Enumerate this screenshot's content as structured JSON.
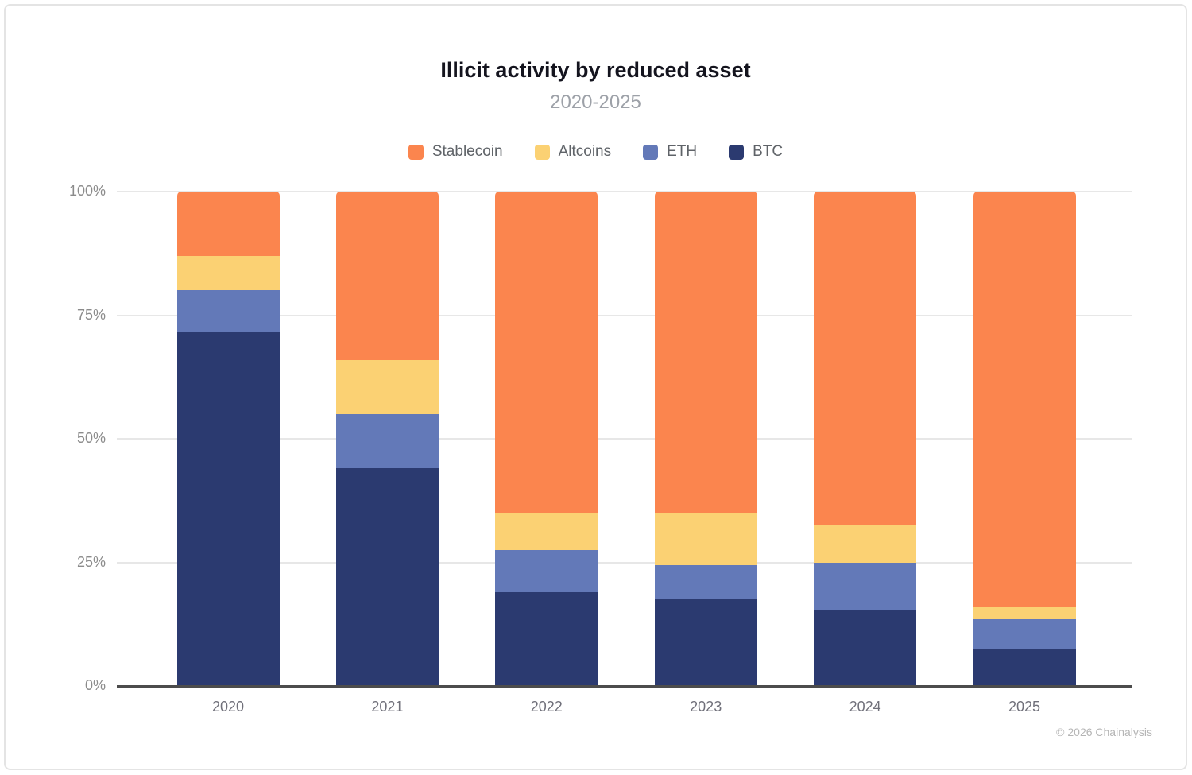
{
  "header": {
    "title": "Illicit activity by reduced asset",
    "subtitle": "2020-2025"
  },
  "legend": {
    "items": [
      {
        "label": "Stablecoin",
        "color": "#FB854E"
      },
      {
        "label": "Altcoins",
        "color": "#FBD173"
      },
      {
        "label": "ETH",
        "color": "#6379B8"
      },
      {
        "label": "BTC",
        "color": "#2B3A70"
      }
    ]
  },
  "chart_data": {
    "type": "bar",
    "stacked": true,
    "title": "Illicit activity by reduced asset",
    "subtitle": "2020-2025",
    "categories": [
      "2020",
      "2021",
      "2022",
      "2023",
      "2024",
      "2025"
    ],
    "series": [
      {
        "name": "BTC",
        "color": "#2B3A70",
        "values": [
          71.5,
          44,
          19,
          17.5,
          15.5,
          7.5
        ]
      },
      {
        "name": "ETH",
        "color": "#6379B8",
        "values": [
          8.5,
          11,
          8.5,
          7,
          9.5,
          6
        ]
      },
      {
        "name": "Altcoins",
        "color": "#FBD173",
        "values": [
          7,
          11,
          7.5,
          10.5,
          7.5,
          2.5
        ]
      },
      {
        "name": "Stablecoin",
        "color": "#FB854E",
        "values": [
          13,
          34,
          65,
          65,
          67.5,
          84
        ]
      }
    ],
    "stack_order": "bottom-to-top",
    "xlabel": "",
    "ylabel": "",
    "ylim": [
      0,
      100
    ],
    "y_ticks": [
      {
        "label": "100%",
        "value": 100
      },
      {
        "label": "75%",
        "value": 75
      },
      {
        "label": "50%",
        "value": 50
      },
      {
        "label": "25%",
        "value": 25
      },
      {
        "label": "0%",
        "value": 0
      }
    ],
    "grid": true,
    "legend_position": "top"
  },
  "footer": {
    "copyright": "© 2026 Chainalysis"
  }
}
